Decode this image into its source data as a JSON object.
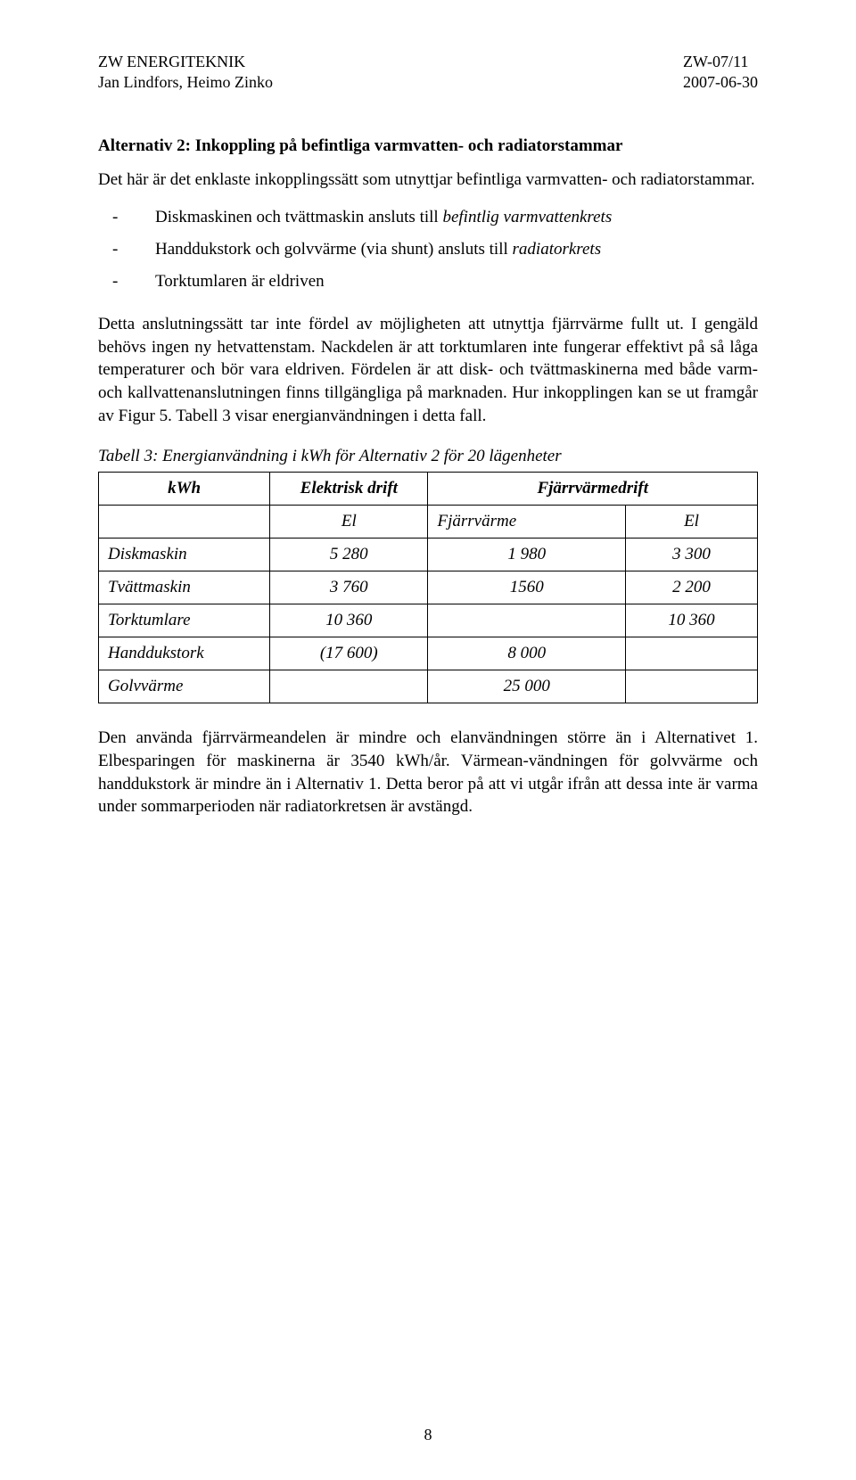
{
  "header": {
    "left1": "ZW ENERGITEKNIK",
    "left2": "Jan Lindfors, Heimo Zinko",
    "right1": "ZW-07/11",
    "right2": "2007-06-30"
  },
  "section_title": "Alternativ 2: Inkoppling på befintliga varmvatten- och radiatorstammar",
  "intro": "Det här är det enklaste inkopplingssätt som utnyttjar befintliga varmvatten- och radiatorstammar.",
  "bullets": [
    {
      "dash": "-",
      "html": "Diskmaskinen och tvättmaskin ansluts till <i>befintlig varmvattenkrets</i>"
    },
    {
      "dash": "-",
      "html": "Handdukstork och golvvärme (via shunt) ansluts till <i>radiatorkrets</i>"
    },
    {
      "dash": "-",
      "html": "Torktumlaren är eldriven"
    }
  ],
  "para2": "Detta anslutningssätt tar inte fördel av möjligheten att utnyttja fjärrvärme fullt ut. I gengäld behövs ingen ny hetvattenstam. Nackdelen är att torktumlaren inte fungerar effektivt på så låga temperaturer och bör vara eldriven. Fördelen är att disk- och tvättmaskinerna med både varm- och kallvattenanslutningen finns tillgängliga på marknaden. Hur inkopplingen kan se ut framgår av Figur 5. Tabell 3 visar energianvändningen i detta fall.",
  "table": {
    "caption": "Tabell 3: Energianvändning i kWh för Alternativ 2 för 20 lägenheter",
    "h_kwh": "kWh",
    "h_eldrift": "Elektrisk drift",
    "h_fjdrift": "Fjärrvärmedrift",
    "sub_el": "El",
    "sub_fj": "Fjärrvärme",
    "sub_el2": "El",
    "rows": [
      {
        "label": "Diskmaskin",
        "el1": "5 280",
        "fj": "1 980",
        "el2": "3 300"
      },
      {
        "label": "Tvättmaskin",
        "el1": "3 760",
        "fj": "1560",
        "el2": "2 200"
      },
      {
        "label": "Torktumlare",
        "el1": "10 360",
        "fj": "",
        "el2": "10 360"
      },
      {
        "label": "Handdukstork",
        "el1": "(17 600)",
        "fj": "8 000",
        "el2": ""
      },
      {
        "label": "Golvvärme",
        "el1": "",
        "fj": "25 000",
        "el2": ""
      }
    ]
  },
  "para3": "Den använda fjärrvärmeandelen är mindre och elanvändningen större än i Alternativet 1. Elbesparingen för maskinerna är 3540 kWh/år. Värmean-vändningen för golvvärme och handdukstork är mindre än i Alternativ 1. Detta beror på att vi utgår ifrån att dessa inte är varma under sommarperioden när radiatorkretsen är avstängd.",
  "page_number": "8"
}
